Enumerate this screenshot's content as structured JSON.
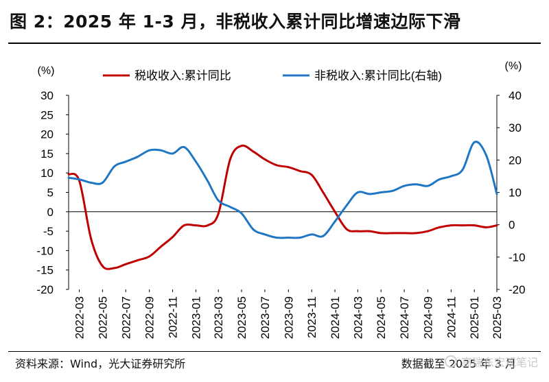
{
  "page": {
    "title": "图 2：2025 年 1-3 月，非税收入累计同比增速边际下滑",
    "source": "资料来源：Wind，光大证券研究所",
    "data_cutoff": "数据截至 2025 年 3 月",
    "watermark": "高瑞东宏观笔记",
    "watermark_icon": "wechat-icon"
  },
  "chart_data": {
    "type": "line",
    "left_unit": "(%)",
    "right_unit": "(%)",
    "left_axis": {
      "min": -20,
      "max": 30,
      "ticks": [
        30,
        25,
        20,
        15,
        10,
        5,
        0,
        -5,
        -10,
        -15,
        -20
      ]
    },
    "right_axis": {
      "min": -20,
      "max": 40,
      "ticks": [
        40,
        30,
        20,
        10,
        0,
        -10,
        -20
      ]
    },
    "x_tick_labels": [
      "2022-03",
      "2022-05",
      "2022-07",
      "2022-09",
      "2022-11",
      "2023-01",
      "2023-03",
      "2023-05",
      "2023-07",
      "2023-09",
      "2023-11",
      "2024-01",
      "2024-03",
      "2024-05",
      "2024-07",
      "2024-09",
      "2024-11",
      "2025-01",
      "2025-03"
    ],
    "legend_position": "top",
    "grid": false,
    "series": [
      {
        "name": "税收收入:累计同比",
        "axis": "left",
        "color": "#c00000",
        "points": [
          [
            "2022-02",
            9.7
          ],
          [
            "2022-03",
            8.0
          ],
          [
            "2022-04",
            -7.0
          ],
          [
            "2022-05",
            -14.0
          ],
          [
            "2022-06",
            -14.5
          ],
          [
            "2022-07",
            -13.5
          ],
          [
            "2022-08",
            -12.5
          ],
          [
            "2022-09",
            -11.5
          ],
          [
            "2022-10",
            -9.0
          ],
          [
            "2022-11",
            -6.5
          ],
          [
            "2022-12",
            -3.5
          ],
          [
            "2023-01",
            -3.5
          ],
          [
            "2023-02",
            -3.5
          ],
          [
            "2023-03",
            -0.5
          ],
          [
            "2023-04",
            13.5
          ],
          [
            "2023-05",
            17.0
          ],
          [
            "2023-06",
            15.5
          ],
          [
            "2023-07",
            13.5
          ],
          [
            "2023-08",
            12.0
          ],
          [
            "2023-09",
            11.5
          ],
          [
            "2023-10",
            10.5
          ],
          [
            "2023-11",
            9.5
          ],
          [
            "2023-12",
            5.0
          ],
          [
            "2024-01",
            0.0
          ],
          [
            "2024-02",
            -4.5
          ],
          [
            "2024-03",
            -5.0
          ],
          [
            "2024-04",
            -5.0
          ],
          [
            "2024-05",
            -5.5
          ],
          [
            "2024-06",
            -5.5
          ],
          [
            "2024-07",
            -5.5
          ],
          [
            "2024-08",
            -5.5
          ],
          [
            "2024-09",
            -5.0
          ],
          [
            "2024-10",
            -4.0
          ],
          [
            "2024-11",
            -3.5
          ],
          [
            "2024-12",
            -3.5
          ],
          [
            "2025-01",
            -3.5
          ],
          [
            "2025-02",
            -4.0
          ],
          [
            "2025-03",
            -3.5
          ]
        ]
      },
      {
        "name": "非税收入:累计同比(右轴)",
        "axis": "right",
        "color": "#1f77c4",
        "points": [
          [
            "2022-02",
            14.5
          ],
          [
            "2022-03",
            14.0
          ],
          [
            "2022-04",
            13.0
          ],
          [
            "2022-05",
            13.0
          ],
          [
            "2022-06",
            18.0
          ],
          [
            "2022-07",
            19.5
          ],
          [
            "2022-08",
            21.0
          ],
          [
            "2022-09",
            23.0
          ],
          [
            "2022-10",
            23.0
          ],
          [
            "2022-11",
            22.0
          ],
          [
            "2022-12",
            24.0
          ],
          [
            "2023-01",
            19.5
          ],
          [
            "2023-02",
            13.5
          ],
          [
            "2023-03",
            7.5
          ],
          [
            "2023-04",
            5.5
          ],
          [
            "2023-05",
            3.5
          ],
          [
            "2023-06",
            -1.5
          ],
          [
            "2023-07",
            -3.0
          ],
          [
            "2023-08",
            -4.0
          ],
          [
            "2023-09",
            -4.0
          ],
          [
            "2023-10",
            -4.0
          ],
          [
            "2023-11",
            -3.0
          ],
          [
            "2023-12",
            -3.5
          ],
          [
            "2024-01",
            1.0
          ],
          [
            "2024-02",
            6.0
          ],
          [
            "2024-03",
            10.0
          ],
          [
            "2024-04",
            9.5
          ],
          [
            "2024-05",
            10.0
          ],
          [
            "2024-06",
            10.5
          ],
          [
            "2024-07",
            12.0
          ],
          [
            "2024-08",
            12.5
          ],
          [
            "2024-09",
            12.0
          ],
          [
            "2024-10",
            14.0
          ],
          [
            "2024-11",
            15.0
          ],
          [
            "2024-12",
            17.0
          ],
          [
            "2025-01",
            25.5
          ],
          [
            "2025-02",
            21.5
          ],
          [
            "2025-03",
            9.5
          ]
        ]
      }
    ]
  }
}
